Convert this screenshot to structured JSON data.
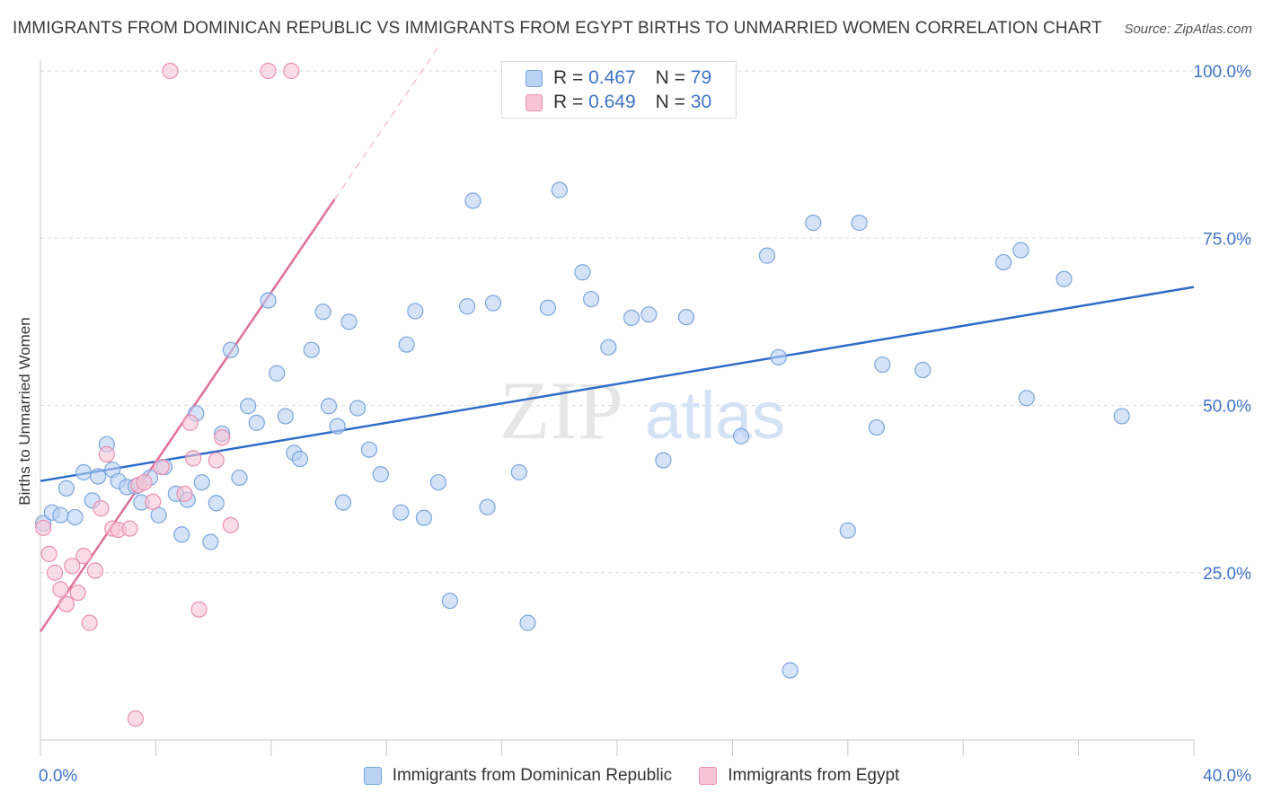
{
  "title": "IMMIGRANTS FROM DOMINICAN REPUBLIC VS IMMIGRANTS FROM EGYPT BIRTHS TO UNMARRIED WOMEN CORRELATION CHART",
  "source": "Source: ZipAtlas.com",
  "watermark": {
    "zip": "ZIP",
    "atlas": "atlas"
  },
  "legend_stats": [
    {
      "r_label": "R =",
      "r_value": "0.467",
      "n_label": "N =",
      "n_value": "79"
    },
    {
      "r_label": "R =",
      "r_value": "0.649",
      "n_label": "N =",
      "n_value": "30"
    }
  ],
  "colors": {
    "blue_fill": "#b9d1f3",
    "blue_stroke": "#7aa5de",
    "blue_line": "#2f6cc8",
    "pink_fill": "#f7c4d5",
    "pink_stroke": "#eb8fb0",
    "pink_line": "#e0709a",
    "tick_text": "#3f73c8",
    "grid": "#dcdcdc"
  },
  "chart_data": {
    "type": "scatter",
    "title": "IMMIGRANTS FROM DOMINICAN REPUBLIC VS IMMIGRANTS FROM EGYPT BIRTHS TO UNMARRIED WOMEN CORRELATION CHART",
    "xlabel": "",
    "ylabel": "Births to Unmarried Women",
    "xlim": [
      0,
      40
    ],
    "ylim": [
      0,
      100
    ],
    "x_tick_labels": [
      "0.0%",
      "40.0%"
    ],
    "y_tick_labels": [
      "25.0%",
      "50.0%",
      "75.0%",
      "100.0%"
    ],
    "y_tick_values": [
      25,
      50,
      75,
      100
    ],
    "grid": true,
    "legend_position": "bottom",
    "series": [
      {
        "name": "Immigrants from Dominican Republic",
        "color": "#7aa5de",
        "trend": {
          "x": [
            0,
            40
          ],
          "y": [
            38.7,
            67.7
          ]
        },
        "points": [
          [
            0.1,
            32.4
          ],
          [
            0.4,
            34.0
          ],
          [
            0.7,
            33.6
          ],
          [
            0.9,
            37.6
          ],
          [
            1.2,
            33.3
          ],
          [
            1.5,
            40.0
          ],
          [
            1.8,
            35.8
          ],
          [
            2.0,
            39.4
          ],
          [
            2.3,
            44.2
          ],
          [
            2.5,
            40.4
          ],
          [
            2.7,
            38.7
          ],
          [
            3.0,
            37.8
          ],
          [
            3.3,
            37.9
          ],
          [
            3.5,
            35.5
          ],
          [
            3.8,
            39.2
          ],
          [
            4.1,
            33.6
          ],
          [
            4.3,
            40.8
          ],
          [
            4.7,
            36.8
          ],
          [
            4.9,
            30.7
          ],
          [
            5.1,
            35.9
          ],
          [
            5.4,
            48.8
          ],
          [
            5.6,
            38.5
          ],
          [
            5.9,
            29.6
          ],
          [
            6.1,
            35.4
          ],
          [
            6.3,
            45.8
          ],
          [
            6.6,
            58.3
          ],
          [
            6.9,
            39.2
          ],
          [
            7.2,
            49.9
          ],
          [
            7.5,
            47.4
          ],
          [
            7.9,
            65.7
          ],
          [
            8.2,
            54.8
          ],
          [
            8.5,
            48.4
          ],
          [
            8.8,
            42.9
          ],
          [
            9.0,
            42.0
          ],
          [
            9.4,
            58.3
          ],
          [
            9.8,
            64.0
          ],
          [
            10.0,
            49.9
          ],
          [
            10.3,
            46.9
          ],
          [
            10.5,
            35.5
          ],
          [
            10.7,
            62.5
          ],
          [
            11.0,
            49.6
          ],
          [
            11.4,
            43.4
          ],
          [
            11.8,
            39.7
          ],
          [
            12.5,
            34.0
          ],
          [
            12.7,
            59.1
          ],
          [
            13.0,
            64.1
          ],
          [
            13.3,
            33.2
          ],
          [
            13.8,
            38.5
          ],
          [
            14.2,
            20.8
          ],
          [
            14.8,
            64.8
          ],
          [
            15.0,
            80.6
          ],
          [
            15.5,
            34.8
          ],
          [
            15.7,
            65.3
          ],
          [
            16.6,
            40.0
          ],
          [
            16.9,
            17.5
          ],
          [
            17.6,
            64.6
          ],
          [
            18.0,
            82.2
          ],
          [
            18.8,
            69.9
          ],
          [
            19.1,
            65.9
          ],
          [
            19.7,
            58.7
          ],
          [
            20.5,
            63.1
          ],
          [
            21.1,
            63.6
          ],
          [
            21.6,
            41.8
          ],
          [
            22.4,
            63.2
          ],
          [
            24.3,
            45.4
          ],
          [
            25.2,
            72.4
          ],
          [
            25.6,
            57.2
          ],
          [
            26.0,
            10.4
          ],
          [
            26.8,
            77.3
          ],
          [
            28.0,
            31.3
          ],
          [
            28.4,
            77.3
          ],
          [
            29.0,
            46.7
          ],
          [
            29.2,
            56.1
          ],
          [
            30.6,
            55.3
          ],
          [
            33.4,
            71.4
          ],
          [
            34.0,
            73.2
          ],
          [
            34.2,
            51.1
          ],
          [
            35.5,
            68.9
          ],
          [
            37.5,
            48.4
          ]
        ]
      },
      {
        "name": "Immigrants from Egypt",
        "color": "#eb8fb0",
        "trend": {
          "x": [
            0,
            10.2
          ],
          "y": [
            16.2,
            80.8
          ]
        },
        "points": [
          [
            0.1,
            31.7
          ],
          [
            0.3,
            27.8
          ],
          [
            0.5,
            25.0
          ],
          [
            0.7,
            22.5
          ],
          [
            0.9,
            20.3
          ],
          [
            1.1,
            26.0
          ],
          [
            1.3,
            22.0
          ],
          [
            1.5,
            27.5
          ],
          [
            1.7,
            17.5
          ],
          [
            1.9,
            25.3
          ],
          [
            2.1,
            34.6
          ],
          [
            2.3,
            42.7
          ],
          [
            2.5,
            31.6
          ],
          [
            2.7,
            31.4
          ],
          [
            3.1,
            31.6
          ],
          [
            3.4,
            38.1
          ],
          [
            3.6,
            38.5
          ],
          [
            3.9,
            35.6
          ],
          [
            4.2,
            40.8
          ],
          [
            4.5,
            100.0
          ],
          [
            5.0,
            36.8
          ],
          [
            5.2,
            47.4
          ],
          [
            5.3,
            42.1
          ],
          [
            5.5,
            19.5
          ],
          [
            6.1,
            41.8
          ],
          [
            6.3,
            45.2
          ],
          [
            6.6,
            32.1
          ],
          [
            7.9,
            100.0
          ],
          [
            8.7,
            100.0
          ],
          [
            3.3,
            3.2
          ]
        ]
      }
    ]
  }
}
